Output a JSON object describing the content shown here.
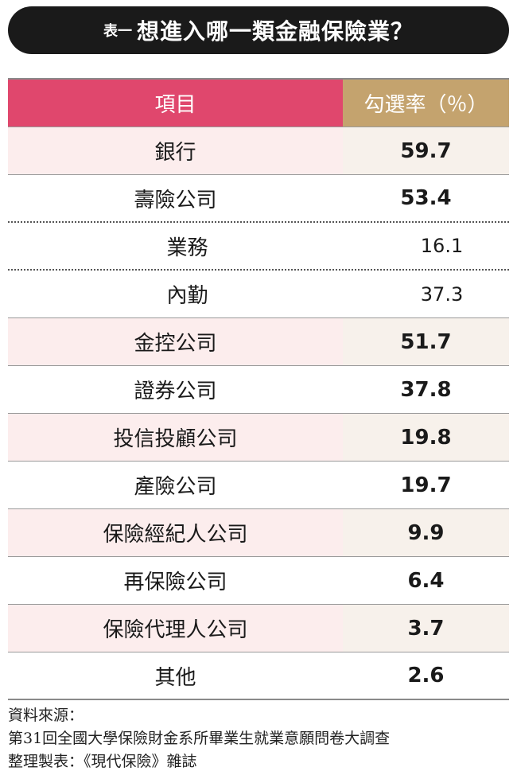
{
  "title": {
    "prefix": "表一",
    "main": "想進入哪一類金融保險業？"
  },
  "chart_data": {
    "type": "table",
    "columns": [
      "項目",
      "勾選率（％）"
    ],
    "rows": [
      {
        "item": "銀行",
        "value": "59.7"
      },
      {
        "item": "壽險公司",
        "value": "53.4"
      },
      {
        "item": "業務",
        "value": "16.1"
      },
      {
        "item": "內勤",
        "value": "37.3"
      },
      {
        "item": "金控公司",
        "value": "51.7"
      },
      {
        "item": "證券公司",
        "value": "37.8"
      },
      {
        "item": "投信投顧公司",
        "value": "19.8"
      },
      {
        "item": "產險公司",
        "value": "19.7"
      },
      {
        "item": "保險經紀人公司",
        "value": "9.9"
      },
      {
        "item": "再保險公司",
        "value": "6.4"
      },
      {
        "item": "保險代理人公司",
        "value": "3.7"
      },
      {
        "item": "其他",
        "value": "2.6"
      }
    ]
  },
  "source": {
    "label": "資料來源：",
    "line1": "第31回全國大學保險財金系所畢業生就業意願問卷大調查",
    "line2": "整理製表：《現代保險》雜誌"
  },
  "colors": {
    "header_item": "#e0476d",
    "header_value": "#c4a36e",
    "row_shade_item": "#fceded",
    "row_shade_value": "#f7f1eb",
    "title_bg": "#1a1a1a"
  }
}
